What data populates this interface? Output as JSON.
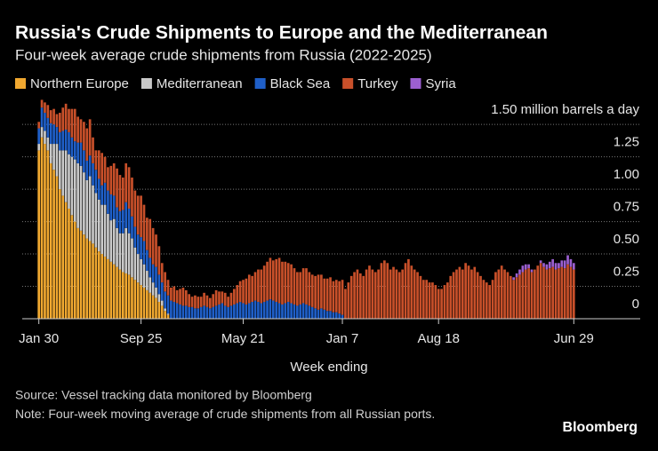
{
  "chart_data": {
    "type": "stacked_bar",
    "title": "Russia's Crude Shipments to Europe and the Mediterranean",
    "subtitle": "Four-week average crude shipments from Russia (2022-2025)",
    "x_label": "Week ending",
    "source": "Source: Vessel tracking data monitored by Bloomberg",
    "note": "Note: Four-week moving average of crude shipments from all Russian ports.",
    "logo": "Bloomberg",
    "legend": "top-left",
    "grid": true,
    "ylim": [
      0,
      1.7
    ],
    "yticks": [
      0,
      0.25,
      {
        "value": 0.5,
        "label": "0.50"
      },
      0.75,
      {
        "value": 1,
        "label": "1.00"
      },
      1.25,
      {
        "value": 1.5,
        "label": "1.50 million barrels a day"
      }
    ],
    "categories": [
      "Jan 30",
      null,
      null,
      null,
      null,
      null,
      null,
      null,
      null,
      null,
      null,
      null,
      null,
      null,
      null,
      null,
      null,
      null,
      null,
      null,
      null,
      null,
      null,
      null,
      null,
      null,
      null,
      null,
      null,
      null,
      null,
      null,
      null,
      null,
      "Sep 25",
      null,
      null,
      null,
      null,
      null,
      null,
      null,
      null,
      null,
      null,
      null,
      null,
      null,
      null,
      null,
      null,
      null,
      null,
      null,
      null,
      null,
      null,
      null,
      null,
      null,
      null,
      null,
      null,
      null,
      null,
      null,
      null,
      null,
      "May 21",
      null,
      null,
      null,
      null,
      null,
      null,
      null,
      null,
      null,
      null,
      null,
      null,
      null,
      null,
      null,
      null,
      null,
      null,
      null,
      null,
      null,
      null,
      null,
      null,
      null,
      null,
      null,
      null,
      null,
      null,
      null,
      null,
      "Jan 7",
      null,
      null,
      null,
      null,
      null,
      null,
      null,
      null,
      null,
      null,
      null,
      null,
      null,
      null,
      null,
      null,
      null,
      null,
      null,
      null,
      null,
      null,
      null,
      null,
      null,
      null,
      null,
      null,
      null,
      null,
      null,
      "Aug 18",
      null,
      null,
      null,
      null,
      null,
      null,
      null,
      null,
      null,
      null,
      null,
      null,
      null,
      null,
      null,
      null,
      null,
      null,
      null,
      null,
      null,
      null,
      null,
      null,
      null,
      null,
      null,
      null,
      null,
      null,
      null,
      null,
      null,
      null,
      null,
      null,
      null,
      null,
      null,
      null,
      null,
      null,
      null,
      null,
      "Jun 29"
    ],
    "series": [
      {
        "name": "Northern Europe",
        "color": "#f0a830",
        "values": [
          1.3,
          1.4,
          1.35,
          1.3,
          1.2,
          1.15,
          1.1,
          1,
          0.95,
          0.9,
          0.85,
          0.8,
          0.75,
          0.7,
          0.68,
          0.65,
          0.62,
          0.6,
          0.58,
          0.55,
          0.52,
          0.5,
          0.48,
          0.46,
          0.44,
          0.42,
          0.4,
          0.38,
          0.36,
          0.35,
          0.34,
          0.32,
          0.3,
          0.28,
          0.26,
          0.24,
          0.22,
          0.2,
          0.18,
          0.16,
          0.13,
          0.1,
          0.06,
          0.03,
          0,
          0,
          0,
          0,
          0,
          0,
          0,
          0,
          0,
          0,
          0,
          0,
          0,
          0,
          0,
          0,
          0,
          0,
          0,
          0,
          0,
          0,
          0,
          0,
          0,
          0,
          0,
          0,
          0,
          0,
          0,
          0,
          0,
          0,
          0,
          0,
          0,
          0,
          0,
          0,
          0,
          0,
          0,
          0,
          0,
          0,
          0,
          0,
          0,
          0,
          0,
          0,
          0,
          0,
          0,
          0,
          0,
          0,
          0,
          0,
          0,
          0,
          0,
          0,
          0,
          0,
          0,
          0,
          0,
          0,
          0,
          0,
          0,
          0,
          0,
          0,
          0,
          0,
          0,
          0,
          0,
          0,
          0,
          0,
          0,
          0,
          0,
          0,
          0,
          0,
          0,
          0,
          0,
          0,
          0,
          0,
          0,
          0,
          0,
          0,
          0,
          0,
          0,
          0,
          0,
          0,
          0,
          0,
          0,
          0,
          0,
          0,
          0,
          0,
          0,
          0,
          0,
          0,
          0,
          0,
          0,
          0,
          0,
          0,
          0,
          0,
          0,
          0,
          0,
          0,
          0,
          0,
          0,
          0,
          0
        ]
      },
      {
        "name": "Mediterranean",
        "color": "#c9c9c9",
        "values": [
          0.05,
          0.08,
          0.1,
          0.1,
          0.15,
          0.2,
          0.25,
          0.3,
          0.35,
          0.4,
          0.42,
          0.45,
          0.48,
          0.5,
          0.5,
          0.48,
          0.45,
          0.5,
          0.45,
          0.42,
          0.4,
          0.38,
          0.4,
          0.35,
          0.32,
          0.35,
          0.3,
          0.28,
          0.3,
          0.35,
          0.32,
          0.3,
          0.25,
          0.22,
          0.2,
          0.18,
          0.15,
          0.12,
          0.1,
          0.08,
          0.06,
          0.04,
          0.02,
          0.01,
          0,
          0,
          0,
          0,
          0,
          0,
          0,
          0,
          0,
          0,
          0,
          0,
          0,
          0,
          0,
          0,
          0,
          0,
          0,
          0,
          0,
          0,
          0,
          0,
          0,
          0,
          0,
          0,
          0,
          0,
          0,
          0,
          0,
          0,
          0,
          0,
          0,
          0,
          0,
          0,
          0,
          0,
          0,
          0,
          0,
          0,
          0,
          0,
          0,
          0,
          0,
          0,
          0,
          0,
          0,
          0,
          0,
          0,
          0,
          0,
          0,
          0,
          0,
          0,
          0,
          0,
          0,
          0,
          0,
          0,
          0,
          0,
          0,
          0,
          0,
          0,
          0,
          0,
          0,
          0,
          0,
          0,
          0,
          0,
          0,
          0,
          0,
          0,
          0,
          0,
          0,
          0,
          0,
          0,
          0,
          0,
          0,
          0,
          0,
          0,
          0,
          0,
          0,
          0,
          0,
          0,
          0,
          0,
          0,
          0,
          0,
          0,
          0,
          0,
          0,
          0,
          0,
          0,
          0,
          0,
          0,
          0,
          0,
          0,
          0,
          0,
          0,
          0,
          0,
          0,
          0,
          0,
          0,
          0,
          0
        ]
      },
      {
        "name": "Black Sea",
        "color": "#1f5fc8",
        "values": [
          0.12,
          0.15,
          0.14,
          0.15,
          0.16,
          0.15,
          0.13,
          0.14,
          0.15,
          0.16,
          0.17,
          0.15,
          0.14,
          0.16,
          0.18,
          0.17,
          0.15,
          0.16,
          0.17,
          0.18,
          0.16,
          0.15,
          0.17,
          0.18,
          0.2,
          0.18,
          0.16,
          0.17,
          0.18,
          0.2,
          0.19,
          0.17,
          0.16,
          0.15,
          0.17,
          0.18,
          0.16,
          0.15,
          0.14,
          0.16,
          0.15,
          0.14,
          0.13,
          0.14,
          0.14,
          0.13,
          0.12,
          0.11,
          0.1,
          0.1,
          0.09,
          0.09,
          0.08,
          0.08,
          0.09,
          0.1,
          0.09,
          0.08,
          0.09,
          0.1,
          0.11,
          0.12,
          0.1,
          0.09,
          0.1,
          0.11,
          0.12,
          0.13,
          0.12,
          0.11,
          0.12,
          0.13,
          0.14,
          0.13,
          0.12,
          0.13,
          0.14,
          0.15,
          0.14,
          0.13,
          0.12,
          0.11,
          0.12,
          0.13,
          0.12,
          0.11,
          0.1,
          0.11,
          0.12,
          0.11,
          0.1,
          0.09,
          0.08,
          0.07,
          0.08,
          0.07,
          0.06,
          0.06,
          0.05,
          0.05,
          0.04,
          0.03,
          0,
          0,
          0,
          0,
          0,
          0,
          0,
          0,
          0,
          0,
          0,
          0,
          0,
          0,
          0,
          0,
          0,
          0,
          0,
          0,
          0,
          0,
          0,
          0,
          0,
          0,
          0,
          0,
          0,
          0,
          0,
          0,
          0,
          0,
          0,
          0,
          0,
          0,
          0,
          0,
          0,
          0,
          0,
          0,
          0,
          0,
          0,
          0,
          0,
          0,
          0,
          0,
          0,
          0,
          0,
          0,
          0,
          0,
          0,
          0,
          0,
          0,
          0,
          0,
          0,
          0,
          0,
          0,
          0,
          0,
          0,
          0,
          0,
          0,
          0,
          0,
          0
        ]
      },
      {
        "name": "Turkey",
        "color": "#c8502a",
        "values": [
          0.05,
          0.06,
          0.08,
          0.1,
          0.1,
          0.12,
          0.1,
          0.15,
          0.18,
          0.2,
          0.18,
          0.22,
          0.25,
          0.2,
          0.18,
          0.22,
          0.25,
          0.28,
          0.2,
          0.15,
          0.22,
          0.25,
          0.2,
          0.18,
          0.22,
          0.25,
          0.3,
          0.28,
          0.25,
          0.3,
          0.32,
          0.3,
          0.28,
          0.3,
          0.32,
          0.28,
          0.25,
          0.3,
          0.28,
          0.25,
          0.22,
          0.15,
          0.15,
          0.12,
          0.1,
          0.12,
          0.1,
          0.12,
          0.14,
          0.12,
          0.1,
          0.08,
          0.1,
          0.09,
          0.08,
          0.1,
          0.09,
          0.08,
          0.1,
          0.12,
          0.1,
          0.09,
          0.1,
          0.08,
          0.1,
          0.12,
          0.14,
          0.16,
          0.18,
          0.2,
          0.22,
          0.2,
          0.22,
          0.25,
          0.26,
          0.28,
          0.3,
          0.32,
          0.31,
          0.33,
          0.35,
          0.33,
          0.32,
          0.3,
          0.3,
          0.28,
          0.26,
          0.25,
          0.27,
          0.28,
          0.26,
          0.25,
          0.25,
          0.27,
          0.26,
          0.24,
          0.25,
          0.26,
          0.24,
          0.25,
          0.25,
          0.27,
          0.23,
          0.28,
          0.33,
          0.36,
          0.38,
          0.35,
          0.33,
          0.38,
          0.41,
          0.38,
          0.36,
          0.38,
          0.43,
          0.45,
          0.43,
          0.38,
          0.4,
          0.38,
          0.36,
          0.38,
          0.43,
          0.46,
          0.41,
          0.38,
          0.36,
          0.33,
          0.3,
          0.3,
          0.28,
          0.28,
          0.26,
          0.23,
          0.23,
          0.26,
          0.28,
          0.33,
          0.36,
          0.38,
          0.4,
          0.38,
          0.43,
          0.41,
          0.38,
          0.4,
          0.36,
          0.33,
          0.3,
          0.28,
          0.26,
          0.3,
          0.36,
          0.38,
          0.41,
          0.38,
          0.36,
          0.33,
          0.3,
          0.32,
          0.34,
          0.36,
          0.38,
          0.39,
          0.36,
          0.38,
          0.41,
          0.43,
          0.4,
          0.38,
          0.39,
          0.4,
          0.38,
          0.39,
          0.4,
          0.39,
          0.42,
          0.4,
          0.38
        ]
      },
      {
        "name": "Syria",
        "color": "#9b5fd0",
        "values": [
          0,
          0,
          0,
          0,
          0,
          0,
          0,
          0,
          0,
          0,
          0,
          0,
          0,
          0,
          0,
          0,
          0,
          0,
          0,
          0,
          0,
          0,
          0,
          0,
          0,
          0,
          0,
          0,
          0,
          0,
          0,
          0,
          0,
          0,
          0,
          0,
          0,
          0,
          0,
          0,
          0,
          0,
          0,
          0,
          0,
          0,
          0,
          0,
          0,
          0,
          0,
          0,
          0,
          0,
          0,
          0,
          0,
          0,
          0,
          0,
          0,
          0,
          0,
          0,
          0,
          0,
          0,
          0,
          0,
          0,
          0,
          0,
          0,
          0,
          0,
          0,
          0,
          0,
          0,
          0,
          0,
          0,
          0,
          0,
          0,
          0,
          0,
          0,
          0,
          0,
          0,
          0,
          0,
          0,
          0,
          0,
          0,
          0,
          0,
          0,
          0,
          0,
          0,
          0,
          0,
          0,
          0,
          0,
          0,
          0,
          0,
          0,
          0,
          0,
          0,
          0,
          0,
          0,
          0,
          0,
          0,
          0,
          0,
          0,
          0,
          0,
          0,
          0,
          0,
          0,
          0,
          0,
          0,
          0,
          0,
          0,
          0,
          0,
          0,
          0,
          0,
          0,
          0,
          0,
          0,
          0,
          0,
          0,
          0,
          0,
          0,
          0,
          0,
          0,
          0,
          0,
          0,
          0,
          0.02,
          0.03,
          0.04,
          0.05,
          0.04,
          0.03,
          0.02,
          0,
          0,
          0.02,
          0.03,
          0.04,
          0.05,
          0.06,
          0.05,
          0.04,
          0.05,
          0.06,
          0.07,
          0.06,
          0.05
        ]
      }
    ]
  }
}
